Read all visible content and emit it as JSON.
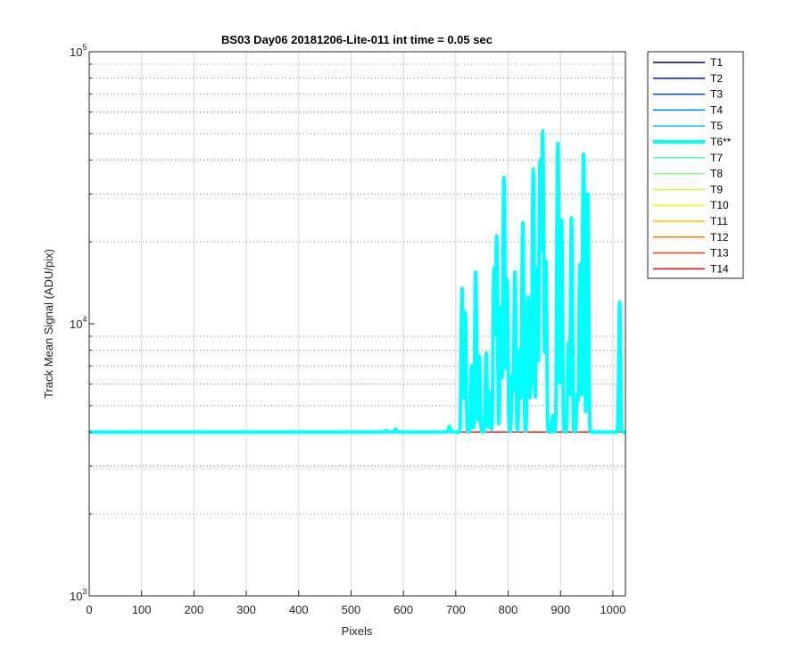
{
  "chart_data": {
    "type": "line",
    "title": "BS03 Day06 20181206-Lite-011 int time = 0.05 sec",
    "xlabel": "Pixels",
    "ylabel": "Track Mean Signal (ADU/pix)",
    "xlim": [
      0,
      1024
    ],
    "ylim": [
      1000,
      100000
    ],
    "yscale": "log",
    "grid": true,
    "xticks": [
      0,
      100,
      200,
      300,
      400,
      500,
      600,
      700,
      800,
      900,
      1000
    ],
    "yticks": [
      {
        "value": 1000,
        "base": "10",
        "exp": "3"
      },
      {
        "value": 10000,
        "base": "10",
        "exp": "4"
      },
      {
        "value": 100000,
        "base": "10",
        "exp": "5"
      }
    ],
    "legend_position": "outside-right",
    "baseline": 4000,
    "series": [
      {
        "name": "T1",
        "color": "#00008f",
        "bold": false
      },
      {
        "name": "T2",
        "color": "#0010ff",
        "bold": false
      },
      {
        "name": "T3",
        "color": "#0040ff",
        "bold": false
      },
      {
        "name": "T4",
        "color": "#0080ff",
        "bold": false
      },
      {
        "name": "T5",
        "color": "#00c0ff",
        "bold": false
      },
      {
        "name": "T6**",
        "color": "#00ffff",
        "bold": true,
        "peaks": [
          [
            567,
            4050
          ],
          [
            585,
            4100
          ],
          [
            688,
            4200
          ],
          [
            712,
            13500
          ],
          [
            718,
            11000
          ],
          [
            730,
            7000
          ],
          [
            738,
            15500
          ],
          [
            745,
            7600
          ],
          [
            758,
            7800
          ],
          [
            765,
            5600
          ],
          [
            773,
            16000
          ],
          [
            778,
            21000
          ],
          [
            786,
            11500
          ],
          [
            792,
            34500
          ],
          [
            798,
            14500
          ],
          [
            808,
            6500
          ],
          [
            813,
            15500
          ],
          [
            822,
            8000
          ],
          [
            828,
            23500
          ],
          [
            838,
            12500
          ],
          [
            843,
            6000
          ],
          [
            848,
            37000
          ],
          [
            855,
            16000
          ],
          [
            861,
            40000
          ],
          [
            866,
            51000
          ],
          [
            872,
            17000
          ],
          [
            885,
            4600
          ],
          [
            895,
            46000
          ],
          [
            902,
            24000
          ],
          [
            915,
            8500
          ],
          [
            921,
            24500
          ],
          [
            932,
            5500
          ],
          [
            937,
            16500
          ],
          [
            944,
            42000
          ],
          [
            952,
            30000
          ],
          [
            1013,
            12000
          ]
        ]
      },
      {
        "name": "T7",
        "color": "#40ffc0",
        "bold": false
      },
      {
        "name": "T8",
        "color": "#80ff80",
        "bold": false
      },
      {
        "name": "T9",
        "color": "#c0ff40",
        "bold": false
      },
      {
        "name": "T10",
        "color": "#ffff00",
        "bold": false
      },
      {
        "name": "T11",
        "color": "#ffc000",
        "bold": false
      },
      {
        "name": "T12",
        "color": "#ff8000",
        "bold": false
      },
      {
        "name": "T13",
        "color": "#ff4000",
        "bold": false
      },
      {
        "name": "T14",
        "color": "#ff0000",
        "bold": false
      }
    ]
  }
}
